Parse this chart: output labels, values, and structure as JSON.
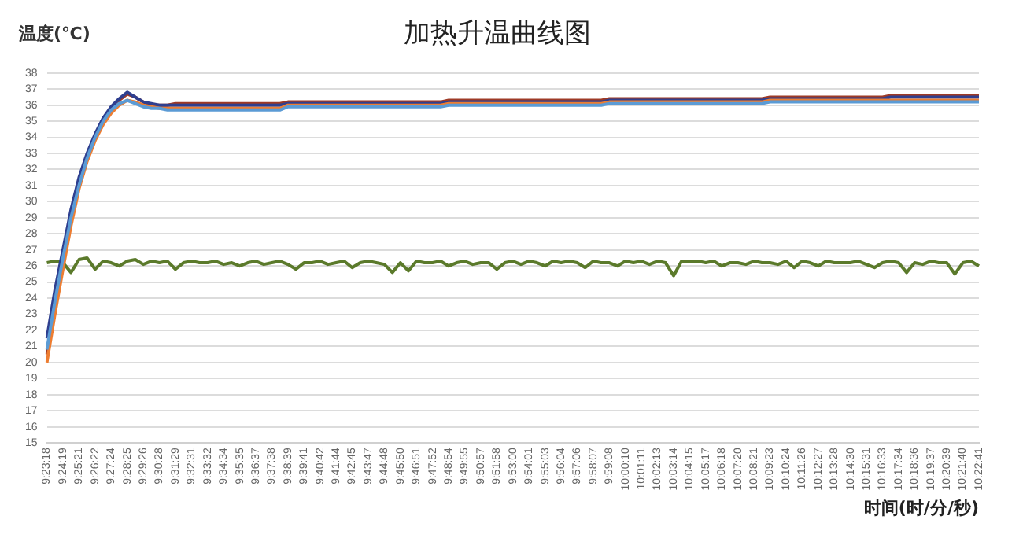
{
  "chart_data": {
    "type": "line",
    "title": "加热升温曲线图",
    "ylabel": "温度(℃)",
    "xlabel": "时间(时/分/秒)",
    "categories": [
      "9:23:18",
      null,
      "9:24:19",
      null,
      "9:25:21",
      null,
      "9:26:22",
      null,
      "9:27:24",
      null,
      "9:28:25",
      null,
      "9:29:26",
      null,
      "9:30:28",
      null,
      "9:31:29",
      null,
      "9:32:31",
      null,
      "9:33:32",
      null,
      "9:34:34",
      null,
      "9:35:35",
      null,
      "9:36:37",
      null,
      "9:37:38",
      null,
      "9:38:39",
      null,
      "9:39:41",
      null,
      "9:40:42",
      null,
      "9:41:44",
      null,
      "9:42:45",
      null,
      "9:43:47",
      null,
      "9:44:48",
      null,
      "9:45:50",
      null,
      "9:46:51",
      null,
      "9:47:52",
      null,
      "9:48:54",
      null,
      "9:49:55",
      null,
      "9:50:57",
      null,
      "9:51:58",
      null,
      "9:53:00",
      null,
      "9:54:01",
      null,
      "9:55:03",
      null,
      "9:56:04",
      null,
      "9:57:06",
      null,
      "9:58:07",
      null,
      "9:59:08",
      null,
      "10:00:10",
      null,
      "10:01:11",
      null,
      "10:02:13",
      null,
      "10:03:14",
      null,
      "10:04:15",
      null,
      "10:05:17",
      null,
      "10:06:18",
      null,
      "10:07:20",
      null,
      "10:08:21",
      null,
      "10:09:23",
      null,
      "10:10:24",
      null,
      "10:11:26",
      null,
      "10:12:27",
      null,
      "10:13:28",
      null,
      "10:14:30",
      null,
      "10:15:31",
      null,
      "10:16:33",
      null,
      "10:17:34",
      null,
      "10:18:36",
      null,
      "10:19:37",
      null,
      "10:20:39",
      null,
      "10:21:40",
      null,
      "10:22:41"
    ],
    "ylim": [
      15,
      38
    ],
    "yticks": [
      15,
      16,
      17,
      18,
      19,
      20,
      21,
      22,
      23,
      24,
      25,
      26,
      27,
      28,
      29,
      30,
      31,
      32,
      33,
      34,
      35,
      36,
      37,
      38
    ],
    "grid": "y",
    "legend": false,
    "marker": "none",
    "line_style": "solid",
    "series": [
      {
        "color": "#5b9bd5",
        "values": [
          20.8,
          23.8,
          26.5,
          29,
          31,
          32.7,
          34,
          35,
          35.7,
          36.1,
          36.3,
          36.1,
          35.9,
          35.8,
          35.8,
          35.7,
          35.7,
          35.7,
          35.7,
          35.7,
          35.7,
          35.7,
          35.7,
          35.7,
          35.7,
          35.7,
          35.7,
          35.7,
          35.7,
          35.7,
          35.9,
          35.9,
          35.9,
          35.9,
          35.9,
          35.9,
          35.9,
          35.9,
          35.9,
          35.9,
          35.9,
          35.9,
          35.9,
          35.9,
          35.9,
          35.9,
          35.9,
          35.9,
          35.9,
          35.9,
          36.0,
          36.0,
          36.0,
          36.0,
          36.0,
          36.0,
          36.0,
          36.0,
          36.0,
          36.0,
          36.0,
          36.0,
          36.0,
          36.0,
          36.0,
          36.0,
          36.0,
          36.0,
          36.0,
          36.0,
          36.1,
          36.1,
          36.1,
          36.1,
          36.1,
          36.1,
          36.1,
          36.1,
          36.1,
          36.1,
          36.1,
          36.1,
          36.1,
          36.1,
          36.1,
          36.1,
          36.1,
          36.1,
          36.1,
          36.1,
          36.2,
          36.2,
          36.2,
          36.2,
          36.2,
          36.2,
          36.2,
          36.2,
          36.2,
          36.2,
          36.2,
          36.2,
          36.2,
          36.2,
          36.2,
          36.2,
          36.2,
          36.2,
          36.2,
          36.2,
          36.2,
          36.2,
          36.2,
          36.2,
          36.2,
          36.2,
          36.2
        ]
      },
      {
        "color": "#ed7d31",
        "values": [
          20.0,
          23,
          25.8,
          28.5,
          30.8,
          32.5,
          33.8,
          34.8,
          35.5,
          36.0,
          36.3,
          36.2,
          36.0,
          35.9,
          35.8,
          35.8,
          35.8,
          35.8,
          35.8,
          35.8,
          35.8,
          35.8,
          35.8,
          35.8,
          35.8,
          35.8,
          35.8,
          35.8,
          35.8,
          35.8,
          36.0,
          36.0,
          36.0,
          36.0,
          36.0,
          36.0,
          36.0,
          36.0,
          36.0,
          36.0,
          36.0,
          36.0,
          36.0,
          36.0,
          36.0,
          36.0,
          36.0,
          36.0,
          36.0,
          36.0,
          36.1,
          36.1,
          36.1,
          36.1,
          36.1,
          36.1,
          36.1,
          36.1,
          36.1,
          36.1,
          36.1,
          36.1,
          36.1,
          36.1,
          36.1,
          36.1,
          36.1,
          36.1,
          36.1,
          36.1,
          36.2,
          36.2,
          36.2,
          36.2,
          36.2,
          36.2,
          36.2,
          36.2,
          36.2,
          36.2,
          36.2,
          36.2,
          36.2,
          36.2,
          36.2,
          36.2,
          36.2,
          36.2,
          36.2,
          36.2,
          36.3,
          36.3,
          36.3,
          36.3,
          36.3,
          36.3,
          36.3,
          36.3,
          36.3,
          36.3,
          36.3,
          36.3,
          36.3,
          36.3,
          36.3,
          36.3,
          36.3,
          36.3,
          36.3,
          36.3,
          36.3,
          36.3,
          36.3,
          36.3,
          36.3,
          36.3,
          36.3
        ]
      },
      {
        "color": "#2f3f8f",
        "values": [
          21.5,
          24.5,
          27,
          29.5,
          31.5,
          33,
          34.2,
          35.2,
          35.9,
          36.4,
          36.8,
          36.5,
          36.2,
          36.1,
          36.0,
          36.0,
          36.0,
          36.0,
          36.0,
          36.0,
          36.0,
          36.0,
          36.0,
          36.0,
          36.0,
          36.0,
          36.0,
          36.0,
          36.0,
          36.0,
          36.1,
          36.1,
          36.1,
          36.1,
          36.1,
          36.1,
          36.1,
          36.1,
          36.1,
          36.1,
          36.1,
          36.1,
          36.1,
          36.1,
          36.1,
          36.1,
          36.1,
          36.1,
          36.1,
          36.1,
          36.2,
          36.2,
          36.2,
          36.2,
          36.2,
          36.2,
          36.2,
          36.2,
          36.2,
          36.2,
          36.2,
          36.2,
          36.2,
          36.2,
          36.2,
          36.2,
          36.2,
          36.2,
          36.2,
          36.2,
          36.3,
          36.3,
          36.3,
          36.3,
          36.3,
          36.3,
          36.3,
          36.3,
          36.3,
          36.3,
          36.3,
          36.3,
          36.3,
          36.3,
          36.3,
          36.3,
          36.3,
          36.3,
          36.3,
          36.3,
          36.4,
          36.4,
          36.4,
          36.4,
          36.4,
          36.4,
          36.4,
          36.4,
          36.4,
          36.4,
          36.4,
          36.4,
          36.4,
          36.4,
          36.4,
          36.5,
          36.5,
          36.5,
          36.5,
          36.5,
          36.5,
          36.5,
          36.5,
          36.5,
          36.5,
          36.5,
          36.5
        ]
      },
      {
        "color": "#9e3a26",
        "values": [
          20.5,
          23.6,
          26.4,
          29,
          31.2,
          32.8,
          34,
          35.1,
          35.8,
          36.3,
          36.7,
          36.5,
          36.2,
          36.0,
          36.0,
          36.0,
          36.1,
          36.1,
          36.1,
          36.1,
          36.1,
          36.1,
          36.1,
          36.1,
          36.1,
          36.1,
          36.1,
          36.1,
          36.1,
          36.1,
          36.2,
          36.2,
          36.2,
          36.2,
          36.2,
          36.2,
          36.2,
          36.2,
          36.2,
          36.2,
          36.2,
          36.2,
          36.2,
          36.2,
          36.2,
          36.2,
          36.2,
          36.2,
          36.2,
          36.2,
          36.3,
          36.3,
          36.3,
          36.3,
          36.3,
          36.3,
          36.3,
          36.3,
          36.3,
          36.3,
          36.3,
          36.3,
          36.3,
          36.3,
          36.3,
          36.3,
          36.3,
          36.3,
          36.3,
          36.3,
          36.4,
          36.4,
          36.4,
          36.4,
          36.4,
          36.4,
          36.4,
          36.4,
          36.4,
          36.4,
          36.4,
          36.4,
          36.4,
          36.4,
          36.4,
          36.4,
          36.4,
          36.4,
          36.4,
          36.4,
          36.5,
          36.5,
          36.5,
          36.5,
          36.5,
          36.5,
          36.5,
          36.5,
          36.5,
          36.5,
          36.5,
          36.5,
          36.5,
          36.5,
          36.5,
          36.6,
          36.6,
          36.6,
          36.6,
          36.6,
          36.6,
          36.6,
          36.6,
          36.6,
          36.6,
          36.6,
          36.6
        ]
      },
      {
        "color": "#5b7a2b",
        "values": [
          26.2,
          26.3,
          26.2,
          25.6,
          26.4,
          26.5,
          25.8,
          26.3,
          26.2,
          26.0,
          26.3,
          26.4,
          26.1,
          26.3,
          26.2,
          26.3,
          25.8,
          26.2,
          26.3,
          26.2,
          26.2,
          26.3,
          26.1,
          26.2,
          26.0,
          26.2,
          26.3,
          26.1,
          26.2,
          26.3,
          26.1,
          25.8,
          26.2,
          26.2,
          26.3,
          26.1,
          26.2,
          26.3,
          25.9,
          26.2,
          26.3,
          26.2,
          26.1,
          25.6,
          26.2,
          25.7,
          26.3,
          26.2,
          26.2,
          26.3,
          26.0,
          26.2,
          26.3,
          26.1,
          26.2,
          26.2,
          25.8,
          26.2,
          26.3,
          26.1,
          26.3,
          26.2,
          26.0,
          26.3,
          26.2,
          26.3,
          26.2,
          25.9,
          26.3,
          26.2,
          26.2,
          26.0,
          26.3,
          26.2,
          26.3,
          26.1,
          26.3,
          26.2,
          25.4,
          26.3,
          26.3,
          26.3,
          26.2,
          26.3,
          26.0,
          26.2,
          26.2,
          26.1,
          26.3,
          26.2,
          26.2,
          26.1,
          26.3,
          25.9,
          26.3,
          26.2,
          26.0,
          26.3,
          26.2,
          26.2,
          26.2,
          26.3,
          26.1,
          25.9,
          26.2,
          26.3,
          26.2,
          25.6,
          26.2,
          26.1,
          26.3,
          26.2,
          26.2,
          25.5,
          26.2,
          26.3,
          26.0
        ]
      }
    ]
  }
}
